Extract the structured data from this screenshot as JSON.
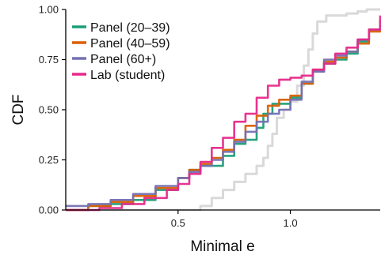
{
  "chart_data": {
    "type": "line",
    "subtype": "step-cdf",
    "xlabel": "Minimal e",
    "ylabel": "CDF",
    "xlim": [
      0.0,
      1.4
    ],
    "ylim": [
      0.0,
      1.0
    ],
    "x_ticks": [
      0.5,
      1.0
    ],
    "x_tick_labels": [
      "0.5",
      "1.0"
    ],
    "y_ticks": [
      0.0,
      0.25,
      0.5,
      0.75,
      1.0
    ],
    "y_tick_labels": [
      "0.00",
      "0.25",
      "0.50",
      "0.75",
      "1.00"
    ],
    "grid": false,
    "legend_position": "top-left",
    "reference_curve": {
      "color": "#d9d9d9",
      "points": [
        [
          0.0,
          0.0
        ],
        [
          0.56,
          0.0
        ],
        [
          0.6,
          0.02
        ],
        [
          0.65,
          0.06
        ],
        [
          0.7,
          0.1
        ],
        [
          0.75,
          0.14
        ],
        [
          0.8,
          0.18
        ],
        [
          0.85,
          0.22
        ],
        [
          0.88,
          0.26
        ],
        [
          0.9,
          0.32
        ],
        [
          0.92,
          0.38
        ],
        [
          0.94,
          0.46
        ],
        [
          0.97,
          0.5
        ],
        [
          1.0,
          0.54
        ],
        [
          1.03,
          0.62
        ],
        [
          1.06,
          0.72
        ],
        [
          1.08,
          0.8
        ],
        [
          1.1,
          0.88
        ],
        [
          1.12,
          0.94
        ],
        [
          1.16,
          0.97
        ],
        [
          1.25,
          0.98
        ],
        [
          1.3,
          0.99
        ],
        [
          1.34,
          1.0
        ],
        [
          1.4,
          1.0
        ]
      ]
    },
    "series": [
      {
        "name": "Panel (20–39)",
        "color": "#1b9e77",
        "points": [
          [
            0.0,
            0.0
          ],
          [
            0.1,
            0.02
          ],
          [
            0.2,
            0.03
          ],
          [
            0.3,
            0.05
          ],
          [
            0.4,
            0.1
          ],
          [
            0.5,
            0.16
          ],
          [
            0.55,
            0.2
          ],
          [
            0.6,
            0.22
          ],
          [
            0.7,
            0.27
          ],
          [
            0.75,
            0.33
          ],
          [
            0.8,
            0.35
          ],
          [
            0.85,
            0.41
          ],
          [
            0.88,
            0.48
          ],
          [
            0.92,
            0.53
          ],
          [
            1.0,
            0.56
          ],
          [
            1.05,
            0.63
          ],
          [
            1.1,
            0.69
          ],
          [
            1.15,
            0.73
          ],
          [
            1.2,
            0.75
          ],
          [
            1.25,
            0.78
          ],
          [
            1.3,
            0.84
          ],
          [
            1.35,
            0.9
          ],
          [
            1.4,
            0.94
          ]
        ]
      },
      {
        "name": "Panel (40–59)",
        "color": "#d95f02",
        "points": [
          [
            0.0,
            0.0
          ],
          [
            0.1,
            0.02
          ],
          [
            0.2,
            0.04
          ],
          [
            0.3,
            0.07
          ],
          [
            0.4,
            0.11
          ],
          [
            0.5,
            0.16
          ],
          [
            0.55,
            0.2
          ],
          [
            0.6,
            0.23
          ],
          [
            0.65,
            0.26
          ],
          [
            0.7,
            0.3
          ],
          [
            0.75,
            0.35
          ],
          [
            0.8,
            0.42
          ],
          [
            0.85,
            0.47
          ],
          [
            0.9,
            0.52
          ],
          [
            0.95,
            0.55
          ],
          [
            1.0,
            0.57
          ],
          [
            1.05,
            0.63
          ],
          [
            1.1,
            0.7
          ],
          [
            1.15,
            0.74
          ],
          [
            1.2,
            0.76
          ],
          [
            1.25,
            0.79
          ],
          [
            1.3,
            0.83
          ],
          [
            1.35,
            0.89
          ],
          [
            1.4,
            0.93
          ]
        ]
      },
      {
        "name": "Panel (60+)",
        "color": "#7570b3",
        "points": [
          [
            0.0,
            0.02
          ],
          [
            0.1,
            0.03
          ],
          [
            0.2,
            0.05
          ],
          [
            0.3,
            0.08
          ],
          [
            0.4,
            0.12
          ],
          [
            0.5,
            0.16
          ],
          [
            0.55,
            0.19
          ],
          [
            0.6,
            0.22
          ],
          [
            0.65,
            0.25
          ],
          [
            0.7,
            0.29
          ],
          [
            0.75,
            0.34
          ],
          [
            0.8,
            0.39
          ],
          [
            0.85,
            0.44
          ],
          [
            0.9,
            0.48
          ],
          [
            0.95,
            0.5
          ],
          [
            1.0,
            0.55
          ],
          [
            1.05,
            0.64
          ],
          [
            1.1,
            0.69
          ],
          [
            1.15,
            0.75
          ],
          [
            1.2,
            0.77
          ],
          [
            1.25,
            0.79
          ],
          [
            1.3,
            0.85
          ],
          [
            1.35,
            0.9
          ],
          [
            1.4,
            0.95
          ]
        ]
      },
      {
        "name": "Lab (student)",
        "color": "#e7298a",
        "points": [
          [
            0.0,
            0.0
          ],
          [
            0.15,
            0.01
          ],
          [
            0.25,
            0.03
          ],
          [
            0.35,
            0.06
          ],
          [
            0.45,
            0.1
          ],
          [
            0.5,
            0.13
          ],
          [
            0.55,
            0.18
          ],
          [
            0.6,
            0.24
          ],
          [
            0.65,
            0.31
          ],
          [
            0.7,
            0.36
          ],
          [
            0.75,
            0.44
          ],
          [
            0.8,
            0.48
          ],
          [
            0.85,
            0.56
          ],
          [
            0.9,
            0.62
          ],
          [
            0.95,
            0.65
          ],
          [
            1.0,
            0.66
          ],
          [
            1.05,
            0.67
          ],
          [
            1.1,
            0.7
          ],
          [
            1.15,
            0.73
          ],
          [
            1.2,
            0.78
          ],
          [
            1.25,
            0.81
          ],
          [
            1.3,
            0.85
          ],
          [
            1.35,
            0.9
          ],
          [
            1.4,
            0.97
          ]
        ]
      }
    ]
  }
}
